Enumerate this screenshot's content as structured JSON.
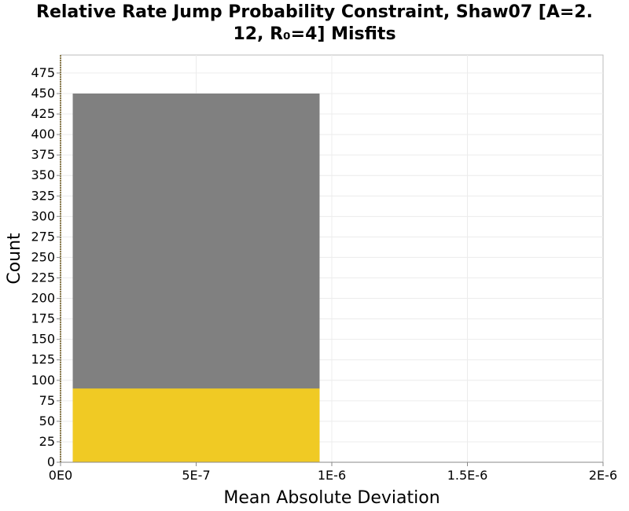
{
  "chart_data": {
    "type": "bar",
    "title_line1": "Relative Rate Jump Probability Constraint, Shaw07 [A=2.",
    "title_line2": "12, R₀=4] Misfits",
    "xlabel": "Mean Absolute Deviation",
    "ylabel": "Count",
    "xlim": [
      0,
      2e-06
    ],
    "ylim": [
      0,
      497
    ],
    "x_ticks": [
      {
        "value": 0,
        "label": "0E0"
      },
      {
        "value": 5e-07,
        "label": "5E-7"
      },
      {
        "value": 1e-06,
        "label": "1E-6"
      },
      {
        "value": 1.5e-06,
        "label": "1.5E-6"
      },
      {
        "value": 2e-06,
        "label": "2E-6"
      }
    ],
    "y_ticks": [
      0,
      25,
      50,
      75,
      100,
      125,
      150,
      175,
      200,
      225,
      250,
      275,
      300,
      325,
      350,
      375,
      400,
      425,
      450,
      475
    ],
    "grid": true,
    "bins": [
      {
        "x0": 4.5e-08,
        "x1": 9.55e-07
      }
    ],
    "series": [
      {
        "name": "Gray",
        "color": "#808080",
        "values": [
          450
        ]
      },
      {
        "name": "Yellow",
        "color": "#f0ca24",
        "values": [
          90
        ]
      }
    ]
  }
}
